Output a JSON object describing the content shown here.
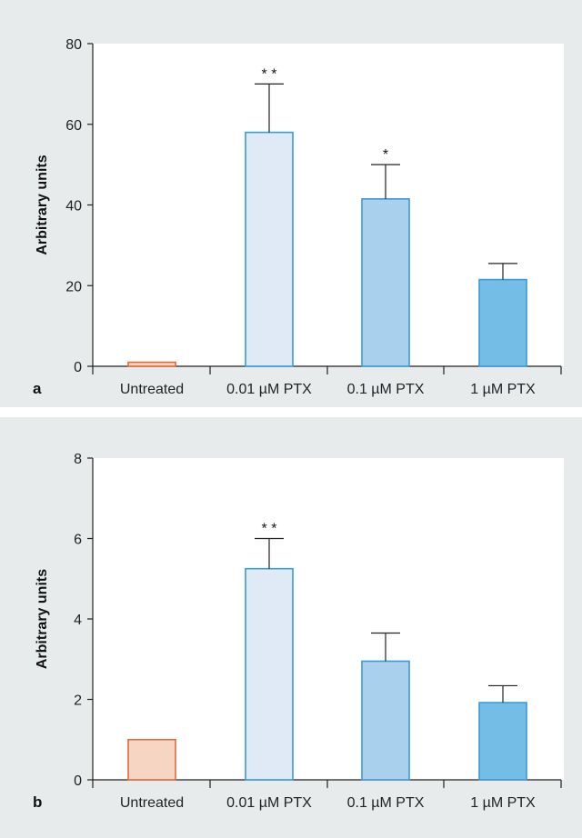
{
  "chart_data": [
    {
      "type": "bar",
      "panel_label": "a",
      "ylabel": "Arbitrary units",
      "categories": [
        "Untreated",
        "0.01 µM PTX",
        "0.1 µM PTX",
        "1 µM PTX"
      ],
      "values": [
        1,
        58,
        41.5,
        21.5
      ],
      "errors": [
        0,
        12,
        8.5,
        4
      ],
      "significance": [
        "",
        "* *",
        "*",
        ""
      ],
      "ylim": [
        0,
        80
      ],
      "yticks": [
        0,
        20,
        40,
        60,
        80
      ],
      "colors": {
        "fills": [
          "#f6d5c2",
          "#dfeaf6",
          "#a9d1ee",
          "#74bde7"
        ],
        "strokes": [
          "#e3693c",
          "#3a9bd6",
          "#3a9bd6",
          "#3a9bd6"
        ]
      }
    },
    {
      "type": "bar",
      "panel_label": "b",
      "ylabel": "Arbitrary units",
      "categories": [
        "Untreated",
        "0.01 µM PTX",
        "0.1 µM PTX",
        "1 µM PTX"
      ],
      "values": [
        1,
        5.25,
        2.95,
        1.92
      ],
      "errors": [
        0,
        0.75,
        0.7,
        0.42
      ],
      "significance": [
        "",
        "* *",
        "",
        ""
      ],
      "ylim": [
        0,
        8
      ],
      "yticks": [
        0,
        2,
        4,
        6,
        8
      ],
      "colors": {
        "fills": [
          "#f6d5c2",
          "#dfeaf6",
          "#a9d1ee",
          "#74bde7"
        ],
        "strokes": [
          "#e3693c",
          "#3a9bd6",
          "#3a9bd6",
          "#3a9bd6"
        ]
      }
    }
  ]
}
